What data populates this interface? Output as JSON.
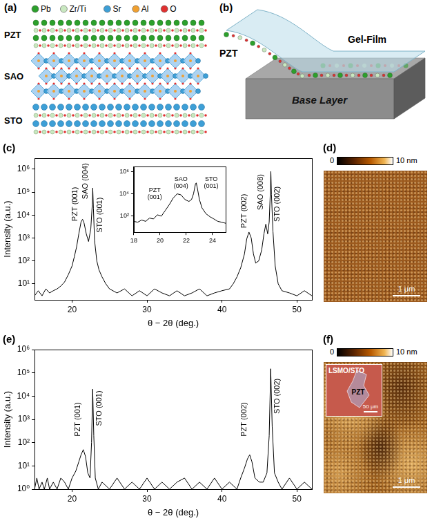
{
  "panels": {
    "a": {
      "label": "(a)",
      "legend": [
        {
          "name": "Pb",
          "color": "#2ca02c"
        },
        {
          "name": "Zr/Ti",
          "color": "#c9e8c0"
        },
        {
          "name": "Sr",
          "color": "#3d9fd6"
        },
        {
          "name": "Al",
          "color": "#f0a030"
        },
        {
          "name": "O",
          "color": "#e03030"
        }
      ],
      "layers": [
        "PZT",
        "SAO",
        "STO"
      ]
    },
    "b": {
      "label": "(b)",
      "texts": {
        "film": "PZT",
        "gel": "Gel-Film",
        "base": "Base Layer"
      }
    },
    "d": {
      "label": "(d)",
      "colorbar": {
        "range": [
          0,
          10
        ],
        "ticks": [
          0,
          {
            "value": 10,
            "label": "10 nm"
          }
        ]
      },
      "scale_bar": "1 μm"
    },
    "f": {
      "label": "(f)",
      "colorbar": {
        "range": [
          0,
          10
        ],
        "ticks": [
          0,
          {
            "value": 10,
            "label": "10 nm"
          }
        ]
      },
      "scale_bar": "1 μm",
      "inset": {
        "substrate": "LSMO/STO",
        "flake": "PZT",
        "scale_bar": "50 μm"
      }
    }
  },
  "chart_data": [
    {
      "type": "line",
      "panel_label": "(c)",
      "x_label": "θ − 2θ (deg.)",
      "y_label": "Intensity (a.u.)",
      "color": "#000000",
      "x": [
        15,
        15.5,
        16,
        16.5,
        17,
        17.5,
        18,
        18.5,
        19,
        19.5,
        20,
        20.3,
        20.6,
        20.9,
        21.2,
        21.4,
        21.6,
        21.9,
        22.2,
        22.5,
        22.7,
        22.76,
        22.85,
        23,
        23.3,
        23.6,
        24,
        24.5,
        25,
        26,
        27,
        28,
        29,
        30,
        31,
        32,
        33,
        34,
        35,
        36,
        37,
        38,
        39,
        40,
        41,
        41.5,
        42,
        42.5,
        43,
        43.3,
        43.6,
        43.9,
        44.2,
        44.5,
        44.9,
        45.3,
        45.6,
        45.85,
        46.1,
        46.3,
        46.45,
        46.52,
        46.6,
        46.8,
        47.1,
        47.5,
        48,
        49,
        50,
        51,
        52
      ],
      "values": [
        3,
        5,
        3,
        6,
        4,
        5,
        6,
        8,
        12,
        25,
        60,
        150,
        400,
        1500,
        5000,
        6500,
        4500,
        1500,
        700,
        2500,
        30000,
        150000,
        20000,
        800,
        100,
        40,
        20,
        10,
        6,
        4,
        6,
        3,
        5,
        3,
        6,
        4,
        3,
        5,
        3,
        4,
        6,
        3,
        4,
        5,
        6,
        10,
        20,
        50,
        200,
        900,
        1800,
        1000,
        200,
        80,
        100,
        300,
        1500,
        4000,
        1500,
        5000,
        100000,
        800000,
        80000,
        2000,
        60,
        10,
        5,
        4,
        3,
        5,
        3
      ],
      "xlim": [
        15,
        52
      ],
      "xticks": [
        20,
        30,
        40,
        50
      ],
      "ylim": [
        2,
        3000000
      ],
      "yticks": [
        {
          "value": 10,
          "label": "10¹"
        },
        {
          "value": 100,
          "label": "10²"
        },
        {
          "value": 1000,
          "label": "10³"
        },
        {
          "value": 10000,
          "label": "10⁴"
        },
        {
          "value": 100000,
          "label": "10⁵"
        },
        {
          "value": 1000000,
          "label": "10⁶"
        }
      ],
      "log": "y",
      "grid": false,
      "annotations": [
        {
          "text": "PZT (001)",
          "x": 20.4,
          "y": 30000
        },
        {
          "text": "SAO (004)",
          "x": 21.8,
          "y": 300000
        },
        {
          "text": "STO (001)",
          "x": 23.7,
          "y": 10000
        },
        {
          "text": "PZT (002)",
          "x": 43.0,
          "y": 15000
        },
        {
          "text": "SAO (008)",
          "x": 45.2,
          "y": 100000
        },
        {
          "text": "STO (002)",
          "x": 47.4,
          "y": 30000
        }
      ]
    },
    {
      "type": "line",
      "color": "#000000",
      "x": [
        18,
        18.3,
        18.6,
        18.9,
        19.2,
        19.5,
        19.8,
        20.1,
        20.4,
        20.7,
        21,
        21.3,
        21.6,
        21.9,
        22.2,
        22.4,
        22.55,
        22.7,
        22.76,
        22.85,
        23,
        23.2,
        23.5,
        23.8,
        24.1,
        24.4,
        24.7,
        25
      ],
      "values": [
        30,
        25,
        40,
        30,
        60,
        50,
        120,
        90,
        300,
        1000,
        4000,
        10000,
        8000,
        3000,
        2000,
        3000,
        10000,
        80000,
        100000,
        30000,
        3000,
        500,
        150,
        80,
        50,
        30,
        25,
        20
      ],
      "xlim": [
        18,
        25
      ],
      "xticks": [
        18,
        20,
        22,
        24
      ],
      "ylim": [
        3,
        3000000
      ],
      "yticks": [
        {
          "value": 100,
          "label": "10²"
        },
        {
          "value": 10000,
          "label": "10⁴"
        },
        {
          "value": 1000000,
          "label": "10⁶"
        }
      ],
      "log": "y",
      "grid": false,
      "annotations": [
        {
          "text": "PZT (001)",
          "x": 19.6,
          "y": 10000
        },
        {
          "text": "SAO (004)",
          "x": 21.6,
          "y": 100000
        },
        {
          "text": "STO (001)",
          "x": 23.9,
          "y": 100000
        }
      ]
    },
    {
      "type": "line",
      "panel_label": "(e)",
      "x_label": "θ − 2θ (deg.)",
      "y_label": "Intensity (a.u.)",
      "color": "#000000",
      "x": [
        15,
        15.3,
        15.6,
        16,
        16.3,
        16.7,
        17,
        17.5,
        18,
        18.5,
        19,
        19.5,
        20,
        20.5,
        20.9,
        21.2,
        21.5,
        21.8,
        22.1,
        22.4,
        22.6,
        22.75,
        22.9,
        23.1,
        23.5,
        24,
        25,
        26,
        27,
        28,
        29,
        30,
        31,
        32,
        33,
        34,
        35,
        36,
        37,
        38,
        39,
        40,
        41,
        42,
        42.5,
        43,
        43.4,
        43.7,
        44,
        44.4,
        45,
        45.5,
        46,
        46.3,
        46.5,
        46.7,
        47,
        47.5,
        48,
        49,
        50,
        51,
        52
      ],
      "values": [
        1,
        3,
        1,
        2,
        1,
        3,
        1,
        2,
        1,
        3,
        2,
        1,
        3,
        6,
        15,
        30,
        50,
        25,
        5,
        3,
        100,
        20000,
        200,
        3,
        1,
        2,
        1,
        3,
        1,
        2,
        1,
        3,
        1,
        2,
        1,
        2,
        3,
        1,
        2,
        1,
        3,
        1,
        2,
        1,
        3,
        8,
        20,
        30,
        15,
        3,
        2,
        2,
        5,
        200,
        150000,
        500,
        5,
        2,
        1,
        3,
        1,
        2,
        1
      ],
      "xlim": [
        15,
        52
      ],
      "xticks": [
        20,
        30,
        40,
        50
      ],
      "ylim": [
        1,
        1000000
      ],
      "yticks": [
        {
          "value": 1,
          "label": "10⁰"
        },
        {
          "value": 10,
          "label": "10¹"
        },
        {
          "value": 100,
          "label": "10²"
        },
        {
          "value": 1000,
          "label": "10³"
        },
        {
          "value": 10000,
          "label": "10⁴"
        },
        {
          "value": 100000,
          "label": "10⁵"
        },
        {
          "value": 1000000,
          "label": "10⁶"
        }
      ],
      "log": "y",
      "grid": false,
      "annotations": [
        {
          "text": "PZT (001)",
          "x": 20.8,
          "y": 1000
        },
        {
          "text": "STO (001)",
          "x": 23.6,
          "y": 3000
        },
        {
          "text": "PZT (002)",
          "x": 43.0,
          "y": 1000
        },
        {
          "text": "STO (002)",
          "x": 47.4,
          "y": 10000
        }
      ]
    }
  ]
}
